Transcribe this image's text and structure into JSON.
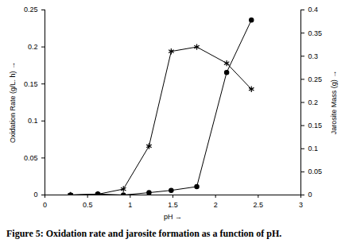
{
  "chart_data": {
    "type": "line",
    "caption": "Figure 5: Oxidation rate and jarosite formation as a function of pH.",
    "xlabel": "pH",
    "ylabel": "Oxidation Rate (g/L. h)",
    "y2label": "Jarosite Mass (g)",
    "x": [
      0.3,
      0.62,
      0.92,
      1.22,
      1.48,
      1.78,
      2.13,
      2.42
    ],
    "series": [
      {
        "color": "#000000",
        "marker": "asterisk",
        "values": [
          0,
          0.001,
          0.008,
          0.066,
          0.194,
          0.2,
          0.178,
          0.143
        ]
      },
      {
        "color": "#000000",
        "marker": "circle",
        "axis": "y2",
        "values": [
          0,
          0.002,
          0,
          0.005,
          0.01,
          0.018,
          0.265,
          0.378
        ]
      }
    ],
    "xlim": [
      0,
      3
    ],
    "xticks": [
      0,
      0.5,
      1,
      1.5,
      2,
      2.5,
      3
    ],
    "ylim": [
      0,
      0.25
    ],
    "yticks": [
      0,
      0.05,
      0.1,
      0.15,
      0.2,
      0.25
    ],
    "y2lim": [
      0,
      0.4
    ],
    "y2ticks": [
      0,
      0.05,
      0.1,
      0.15,
      0.2,
      0.25,
      0.3,
      0.35,
      0.4
    ],
    "grid": false
  }
}
